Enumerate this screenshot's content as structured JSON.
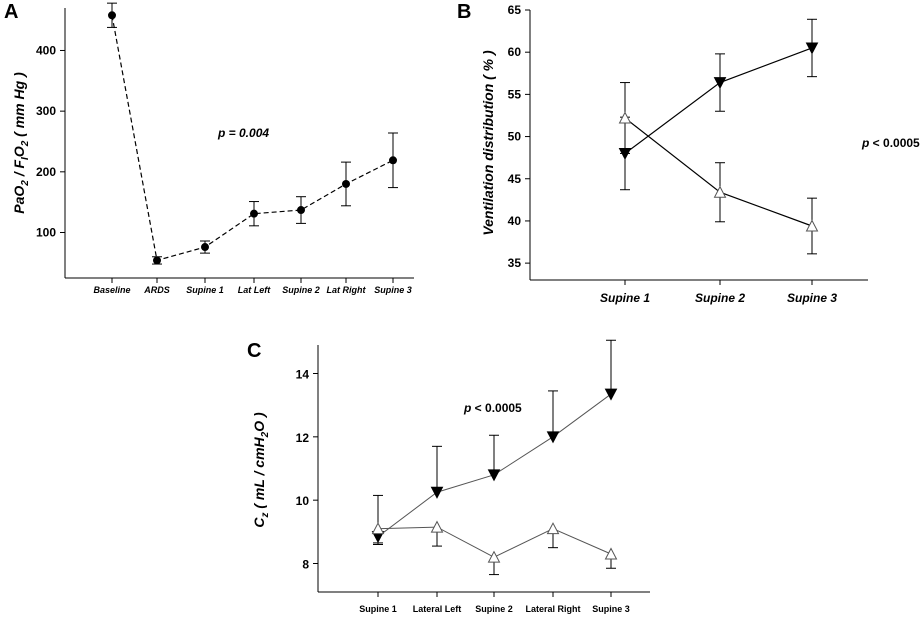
{
  "chart_data": [
    {
      "panel": "A",
      "type": "line",
      "ylabel_parts": [
        "PaO",
        "2",
        " / F",
        "I",
        "O",
        "2",
        " ( mm Hg )"
      ],
      "categories": [
        "Baseline",
        "ARDS",
        "Supine 1",
        "Lat Left",
        "Supine 2",
        "Lat Right",
        "Supine 3"
      ],
      "values": [
        458,
        54,
        76,
        131,
        137,
        180,
        219
      ],
      "errors": [
        20,
        6,
        10,
        20,
        22,
        36,
        45
      ],
      "yticks": [
        100,
        200,
        300,
        400
      ],
      "ylim": [
        25,
        470
      ],
      "annotation": "p = 0.004",
      "grid": false
    },
    {
      "panel": "B",
      "type": "line",
      "ylabel": "Ventilation distribution ( % )",
      "categories": [
        "Supine 1",
        "Supine 2",
        "Supine 3"
      ],
      "series": [
        {
          "name": "filled-triangle-down",
          "values": [
            48.0,
            56.4,
            60.5
          ],
          "errors": [
            4.3,
            3.4,
            3.4
          ]
        },
        {
          "name": "open-triangle-up",
          "values": [
            52.2,
            43.4,
            39.4
          ],
          "errors": [
            4.2,
            3.5,
            3.3
          ]
        }
      ],
      "yticks": [
        35,
        40,
        45,
        50,
        55,
        60,
        65
      ],
      "ylim": [
        33,
        65
      ],
      "annotation_bold": "p",
      "annotation_rest": " < 0.0005",
      "grid": false
    },
    {
      "panel": "C",
      "type": "line",
      "ylabel_parts": [
        "C",
        "z",
        " ( mL / cmH",
        "2",
        "O )"
      ],
      "categories": [
        "Supine 1",
        "Lateral Left",
        "Supine 2",
        "Lateral Right",
        "Supine 3"
      ],
      "series": [
        {
          "name": "filled-triangle-down",
          "values": [
            8.85,
            10.25,
            10.8,
            12.0,
            13.35
          ],
          "errors_up": [
            1.3,
            1.45,
            1.25,
            1.45,
            1.7
          ],
          "errors_down": [
            0.25,
            0,
            0,
            0,
            0
          ]
        },
        {
          "name": "open-triangle-up",
          "values": [
            9.1,
            9.15,
            8.2,
            9.1,
            8.3
          ],
          "errors_up": [
            0,
            0,
            0,
            0,
            0
          ],
          "errors_down": [
            0.45,
            0.6,
            0.55,
            0.6,
            0.45
          ]
        }
      ],
      "yticks": [
        8,
        10,
        12,
        14
      ],
      "ylim": [
        7.1,
        14.9
      ],
      "annotation_bold": "p",
      "annotation_rest": " < 0.0005",
      "grid": false
    }
  ]
}
